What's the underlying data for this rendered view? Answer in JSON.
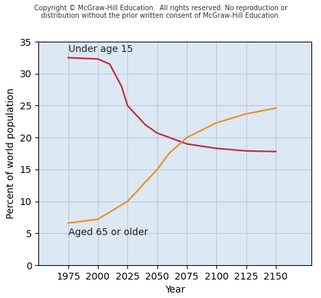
{
  "chart_data": {
    "type": "line",
    "copyright": "Copyright © McGraw-Hill Education.  All rights reserved. No reproduction or\ndistribution without the prior written consent of McGraw-Hill Education.",
    "x_label": "Year",
    "y_label": "Percent of world population",
    "series": [
      {
        "name": "Under age 15",
        "color": "#c0283c",
        "line_style": "solid",
        "x": [
          1975,
          2000,
          2010,
          2020,
          2025,
          2040,
          2050,
          2075,
          2100,
          2125,
          2150
        ],
        "values": [
          32.5,
          32.3,
          31.5,
          28,
          25,
          22,
          20.7,
          19,
          18.3,
          17.9,
          17.8
        ]
      },
      {
        "name": "Aged 65 or older",
        "color": "#f08a24",
        "line_style": "solid",
        "x": [
          1975,
          2000,
          2025,
          2050,
          2060,
          2075,
          2100,
          2125,
          2150
        ],
        "values": [
          6.6,
          7.2,
          10,
          15,
          17.5,
          20,
          22.3,
          23.7,
          24.6
        ]
      }
    ],
    "xlim": [
      1950,
      2180
    ],
    "xticks": [
      1975,
      2000,
      2025,
      2050,
      2075,
      2100,
      2125,
      2150
    ],
    "ylim": [
      0,
      35
    ],
    "yticks": [
      0,
      5,
      10,
      15,
      20,
      25,
      30,
      35
    ],
    "grid": true
  }
}
